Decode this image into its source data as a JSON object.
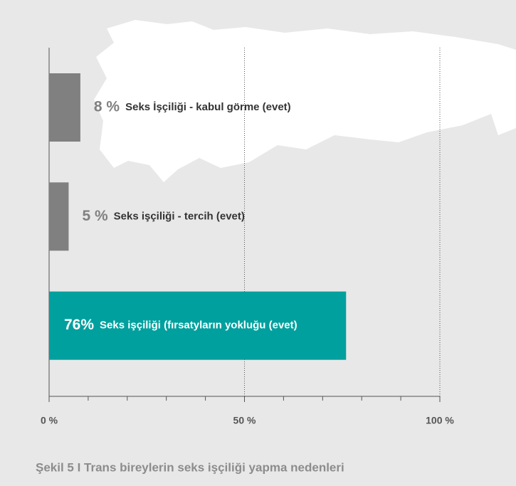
{
  "chart_data": {
    "type": "hbar",
    "title": "Şekil 5 I Trans bireylerin seks işçiliği yapma nedenleri",
    "categories": [
      "Seks İşçiliği - kabul görme (evet)",
      "Seks işçiliği - tercih (evet)",
      "Seks işçiliği (fırsatyların yokluğu (evet)"
    ],
    "values": [
      8,
      5,
      76
    ],
    "value_labels": [
      "8 %",
      "5 %",
      "76%"
    ],
    "colors": [
      "#808080",
      "#808080",
      "#00a09e"
    ],
    "xlim": [
      0,
      100
    ],
    "xticks": [
      {
        "value": 0,
        "label": "0 %"
      },
      {
        "value": 50,
        "label": "50 %"
      },
      {
        "value": 100,
        "label": "100 %"
      }
    ],
    "xminor_ticks": [
      10,
      20,
      30,
      40,
      60,
      70,
      80,
      90
    ],
    "grid": true
  }
}
